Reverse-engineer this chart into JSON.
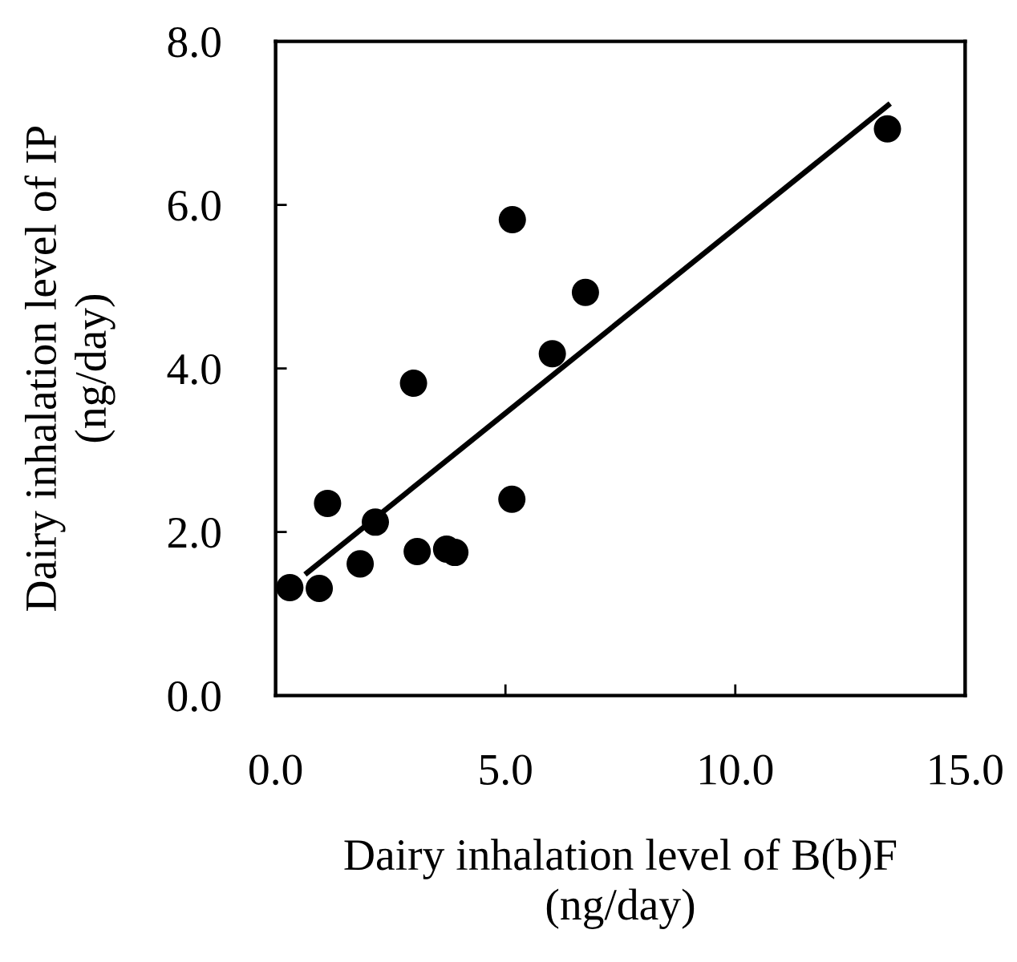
{
  "chart_data": {
    "type": "scatter",
    "xlabel": "Dairy inhalation level of B(b)F\n(ng/day)",
    "ylabel": "Dairy inhalation level of IP\n(ng/day)",
    "xlim": [
      0,
      15
    ],
    "xticks": [
      {
        "value": 0,
        "label": "0.0"
      },
      {
        "value": 5,
        "label": "5.0"
      },
      {
        "value": 10,
        "label": "10.0"
      },
      {
        "value": 15,
        "label": "15.0"
      }
    ],
    "ylim": [
      0,
      8
    ],
    "yticks": [
      {
        "value": 0,
        "label": "0.0"
      },
      {
        "value": 2,
        "label": "2.0"
      },
      {
        "value": 4,
        "label": "4.0"
      },
      {
        "value": 6,
        "label": "6.0"
      },
      {
        "value": 8,
        "label": "8.0"
      }
    ],
    "grid": false,
    "marker": "circle",
    "series": [
      {
        "color": "#000000",
        "x": [
          0.31,
          0.95,
          1.13,
          1.84,
          2.17,
          3.0,
          3.08,
          3.72,
          3.9,
          5.15,
          5.14,
          6.02,
          6.74,
          13.31
        ],
        "values": [
          1.32,
          1.31,
          2.35,
          1.61,
          2.12,
          3.82,
          1.76,
          1.79,
          1.75,
          5.82,
          2.4,
          4.18,
          4.93,
          6.93
        ]
      },
      {
        "type": "line",
        "color": "#000000",
        "line_style": "solid",
        "marker": "none",
        "x": [
          0.64,
          13.37
        ],
        "values": [
          1.48,
          7.24
        ]
      }
    ]
  }
}
